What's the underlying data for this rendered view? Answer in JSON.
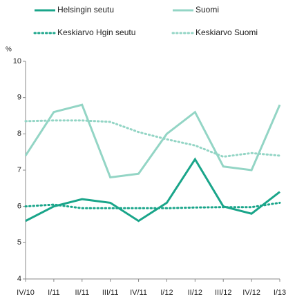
{
  "chart_data": {
    "type": "line",
    "ylabel": "%",
    "categories": [
      "IV/10",
      "I/11",
      "II/11",
      "III/11",
      "IV/11",
      "I/12",
      "II/12",
      "III/12",
      "IV/12",
      "I/13"
    ],
    "series": [
      {
        "name": "Helsingin seutu",
        "color": "#1aa58a",
        "style": "solid",
        "values": [
          5.6,
          6.0,
          6.2,
          6.1,
          5.6,
          6.1,
          7.3,
          6.0,
          5.8,
          6.4
        ]
      },
      {
        "name": "Suomi",
        "color": "#93d5c5",
        "style": "solid",
        "values": [
          7.4,
          8.6,
          8.8,
          6.8,
          6.9,
          8.0,
          8.6,
          7.1,
          7.0,
          8.8
        ]
      },
      {
        "name": "Keskiarvo Hgin seutu",
        "color": "#1aa58a",
        "style": "dotted",
        "values": [
          6.0,
          6.05,
          5.95,
          5.95,
          5.95,
          5.95,
          5.97,
          5.98,
          5.98,
          6.1
        ]
      },
      {
        "name": "Keskiarvo Suomi",
        "color": "#93d5c5",
        "style": "dotted",
        "values": [
          8.35,
          8.37,
          8.37,
          8.33,
          8.05,
          7.85,
          7.68,
          7.37,
          7.47,
          7.4
        ]
      }
    ],
    "ylim": [
      4,
      10
    ],
    "yticks": [
      4,
      5,
      6,
      7,
      8,
      9,
      10
    ],
    "grid": false
  }
}
